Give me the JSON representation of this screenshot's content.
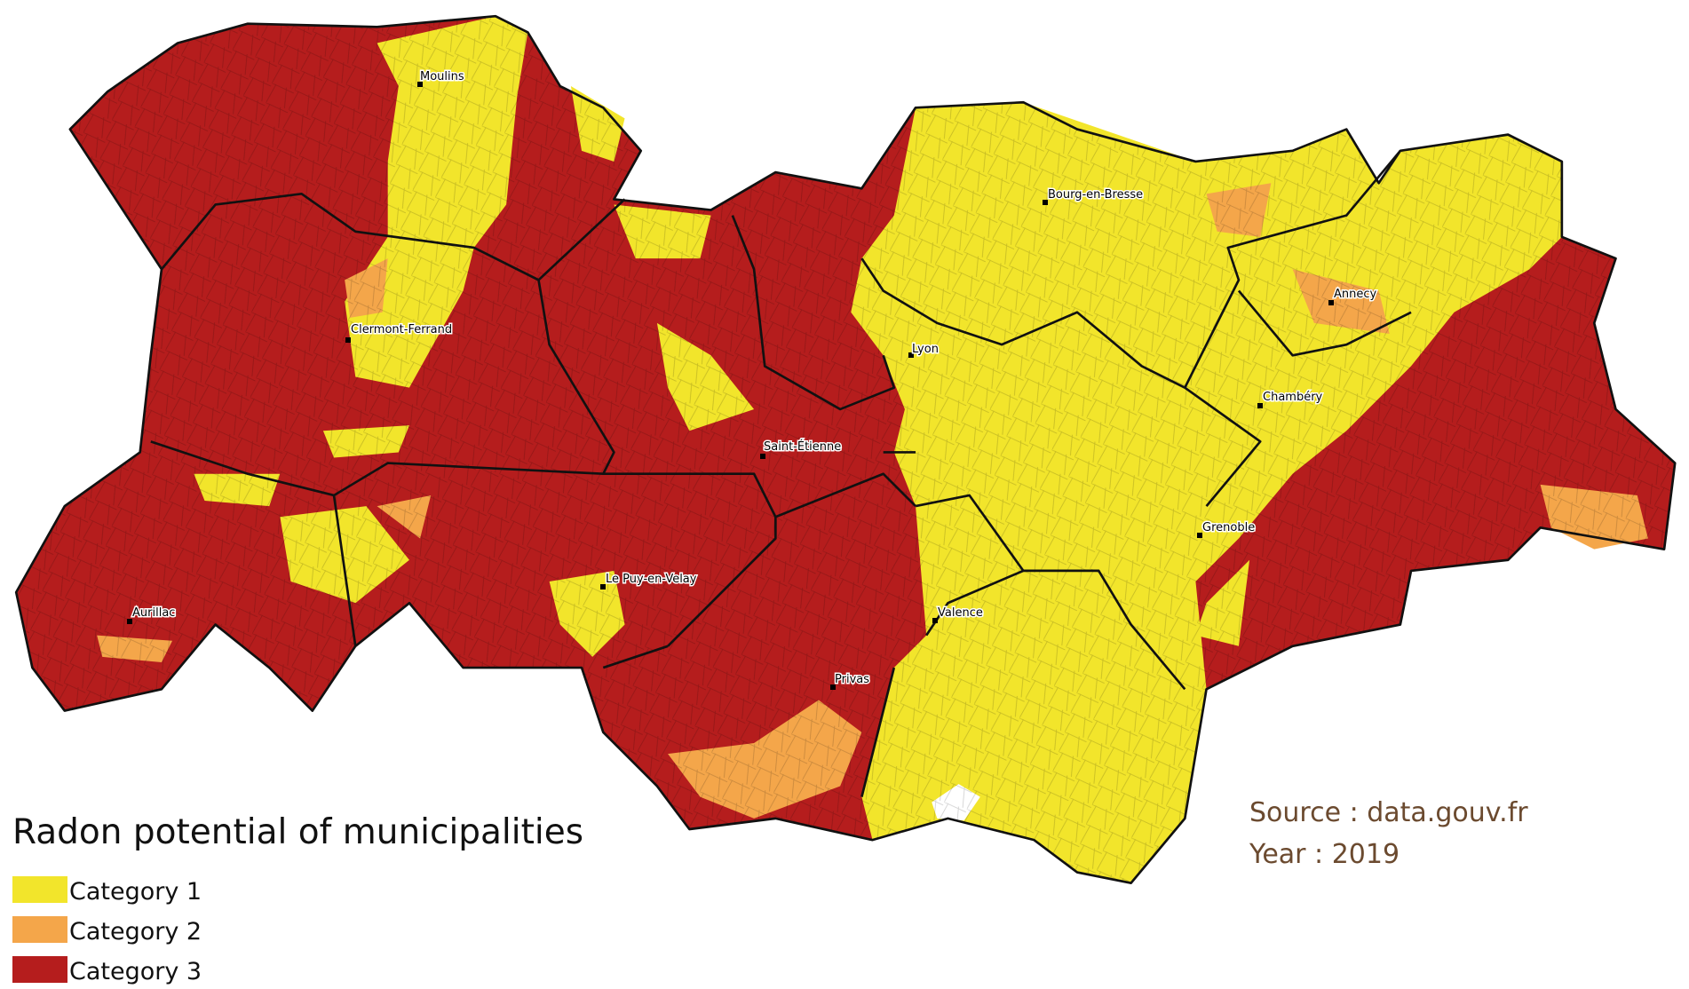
{
  "title": "Radon potential of municipalities",
  "legend": [
    {
      "label": "Category 1",
      "color": "#f2e52b"
    },
    {
      "label": "Category 2",
      "color": "#f4a64a"
    },
    {
      "label": "Category 3",
      "color": "#b51d1d"
    }
  ],
  "cities": [
    "Moulins",
    "Clermont-Ferrand",
    "Lyon",
    "Bourg-en-Bresse",
    "Annecy",
    "Chambéry",
    "Saint-Étienne",
    "Grenoble",
    "Le Puy-en-Velay",
    "Aurillac",
    "Valence",
    "Privas"
  ],
  "source": "Source : data.gouv.fr",
  "year": "Year : 2019"
}
